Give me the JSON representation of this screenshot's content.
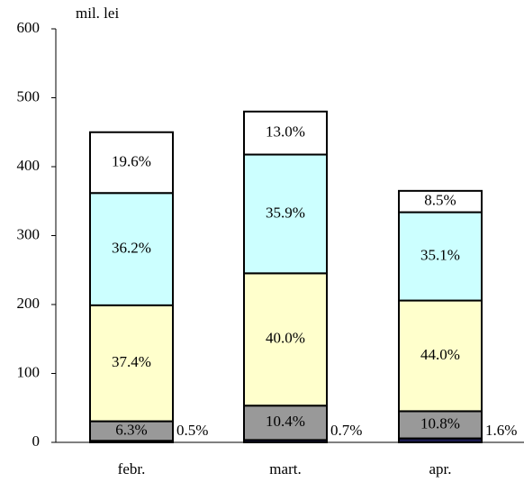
{
  "chart_data": {
    "type": "stacked_bar",
    "y_label": "mil. lei",
    "categories": [
      "febr.",
      "mart.",
      "apr."
    ],
    "series": [
      {
        "color": "#1a1a50",
        "values": [
          2.25,
          3.4,
          5.8
        ],
        "value_labels": [
          "0.5%",
          "0.7%",
          "1.6%"
        ]
      },
      {
        "color": "#999999",
        "values": [
          28.35,
          49.9,
          39.4
        ],
        "value_labels": [
          "6.3%",
          "10.4%",
          "10.8%"
        ]
      },
      {
        "color": "#ffffcc",
        "values": [
          168.3,
          192,
          160.6
        ],
        "value_labels": [
          "37.4%",
          "40.0%",
          "44.0%"
        ]
      },
      {
        "color": "#ccffff",
        "values": [
          162.9,
          172.3,
          128.1
        ],
        "value_labels": [
          "36.2%",
          "35.9%",
          "35.1%"
        ]
      },
      {
        "color": "#ffffff",
        "values": [
          88.2,
          62.4,
          31.0
        ],
        "value_labels": [
          "19.6%",
          "13.0%",
          "8.5%"
        ]
      }
    ],
    "ylim": [
      0,
      600
    ],
    "yticks": [
      0,
      100,
      200,
      300,
      400,
      500,
      600
    ],
    "grid": false
  }
}
